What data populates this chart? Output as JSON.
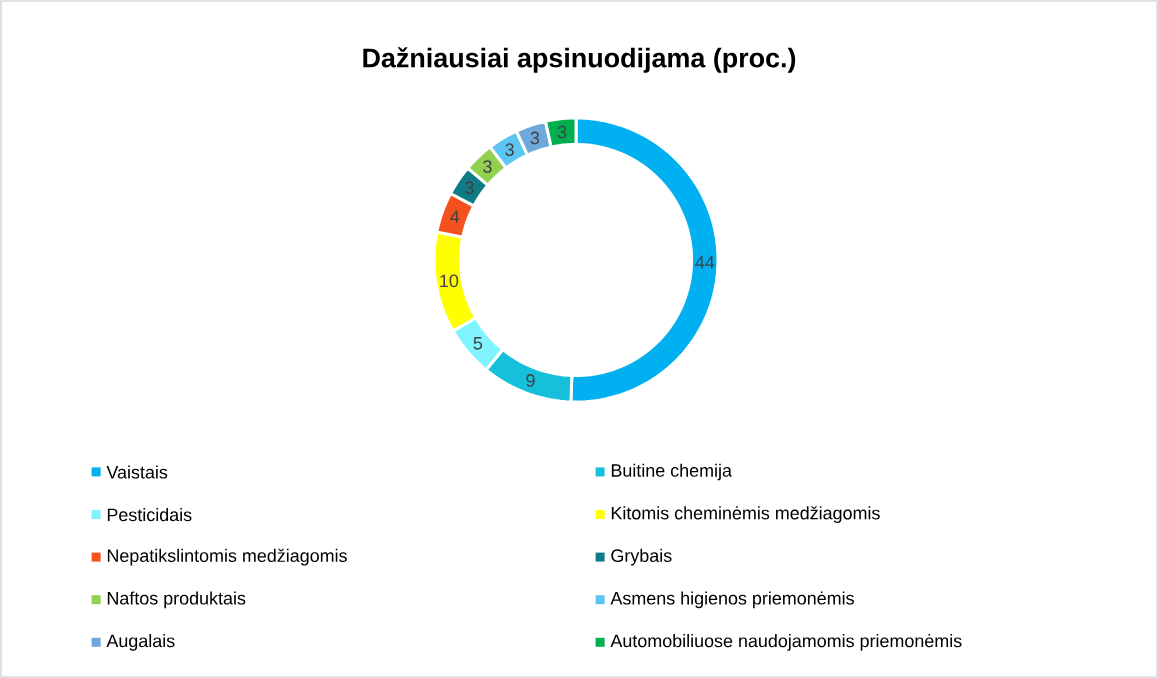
{
  "chart_data": {
    "type": "donut",
    "title": "Dažniausiai apsinuodijama (proc.)",
    "categories": [
      "Vaistais",
      "Buitine chemija",
      "Pesticidais",
      "Kitomis cheminėmis medžiagomis",
      "Nepatikslintomis medžiagomis",
      "Grybais",
      "Naftos produktais",
      "Asmens higienos priemonėmis",
      "Augalais",
      "Automobiliuose naudojamomis priemonėmis"
    ],
    "values": [
      44,
      9,
      5,
      10,
      4,
      3,
      3,
      3,
      3,
      3
    ],
    "colors": [
      "#00b0f0",
      "#17c0da",
      "#7ff3ff",
      "#ffff00",
      "#f4511e",
      "#0f7b86",
      "#92d050",
      "#5cc6f2",
      "#6fa8dc",
      "#00b050"
    ],
    "data_labels": true,
    "legend": "bottom"
  }
}
